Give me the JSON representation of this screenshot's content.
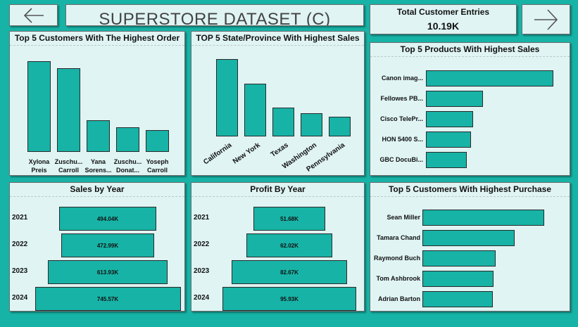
{
  "header": {
    "title": "SUPERSTORE DATASET (C)",
    "kpi_label": "Total Customer Entries",
    "kpi_value": "10.19K"
  },
  "nav": {
    "back_icon": "arrow-left-icon",
    "forward_icon": "arrow-right-icon"
  },
  "colors": {
    "background": "#17b3a6",
    "panel": "#dff4f3",
    "bar": "#17b3a6"
  },
  "chart_data": [
    {
      "id": "top-customers-order",
      "type": "bar",
      "title": "Top 5 Customers With The Highest Order",
      "categories": [
        "Xylona Preis",
        "Zuschu... Carroll",
        "Yana Sorens...",
        "Zuschu... Donat...",
        "Yoseph Carroll"
      ],
      "category_lines": [
        [
          "Xylona",
          "Preis"
        ],
        [
          "Zuschu...",
          "Carroll"
        ],
        [
          "Yana",
          "Sorens..."
        ],
        [
          "Zuschu...",
          "Donat..."
        ],
        [
          "Yoseph",
          "Carroll"
        ]
      ],
      "values": [
        37,
        34,
        13,
        10,
        9
      ],
      "ylim": [
        0,
        40
      ]
    },
    {
      "id": "top-states-sales",
      "type": "bar",
      "title": "TOP 5 State/Province With Highest Sales",
      "categories": [
        "California",
        "New York",
        "Texas",
        "Washington",
        "Pennsylvania"
      ],
      "values": [
        457688,
        310876,
        170188,
        138641,
        116512
      ],
      "ylim": [
        0,
        500000
      ]
    },
    {
      "id": "top-products-sales",
      "type": "bar",
      "orientation": "horizontal",
      "title": "Top 5 Products With Highest Sales",
      "categories": [
        "Canon imag...",
        "Fellowes PB...",
        "Cisco TelePr...",
        "HON 5400 S...",
        "GBC DocuBi..."
      ],
      "values": [
        61600,
        27453,
        22638,
        21870,
        19823
      ],
      "xlim": [
        0,
        70000
      ]
    },
    {
      "id": "sales-by-year",
      "type": "bar",
      "orientation": "horizontal",
      "style": "funnel",
      "title": "Sales by Year",
      "categories": [
        "2021",
        "2022",
        "2023",
        "2024"
      ],
      "values": [
        494.04,
        472.99,
        613.93,
        745.57
      ],
      "labels": [
        "494.04K",
        "472.99K",
        "613.93K",
        "745.57K"
      ]
    },
    {
      "id": "profit-by-year",
      "type": "bar",
      "orientation": "horizontal",
      "style": "funnel",
      "title": "Profit By Year",
      "categories": [
        "2021",
        "2022",
        "2023",
        "2024"
      ],
      "values": [
        51.68,
        62.02,
        82.67,
        95.93
      ],
      "labels": [
        "51.68K",
        "62.02K",
        "82.67K",
        "95.93K"
      ]
    },
    {
      "id": "top-customers-purchase",
      "type": "bar",
      "orientation": "horizontal",
      "title": "Top 5 Customers With Highest Purchase",
      "categories": [
        "Sean Miller",
        "Tamara Chand",
        "Raymond Buch",
        "Tom Ashbrook",
        "Adrian Barton"
      ],
      "values": [
        25043,
        19052,
        15117,
        14596,
        14474
      ],
      "xlim": [
        0,
        27000
      ]
    }
  ]
}
